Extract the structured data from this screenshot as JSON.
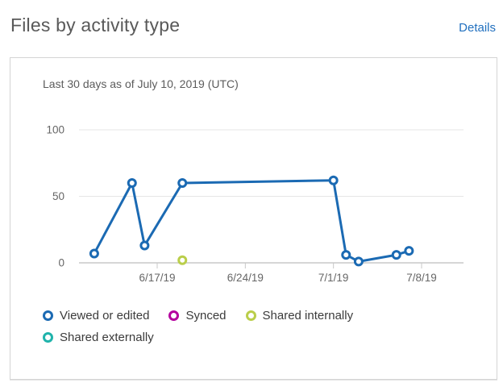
{
  "header": {
    "title": "Files by activity type",
    "details_label": "Details"
  },
  "card": {
    "subtitle": "Last 30 days as of July 10, 2019 (UTC)"
  },
  "colors": {
    "link_blue": "#2170bf",
    "title_gray": "#595959",
    "grid_line": "#e6e6e6",
    "axis_line": "#c8c8c8",
    "axis_text": "#666666",
    "series_viewed": "#1b6ab3",
    "series_synced": "#b4009e",
    "series_shared_internally": "#bace4a",
    "series_shared_externally": "#1fb3ab"
  },
  "chart_data": {
    "type": "line",
    "title": "Files by activity type",
    "subtitle": "Last 30 days as of July 10, 2019 (UTC)",
    "grid": "horizontal",
    "legend_position": "bottom",
    "x_axis": {
      "tick_labels": [
        "6/17/19",
        "6/24/19",
        "7/1/19",
        "7/8/19"
      ],
      "range": [
        "6/11/19",
        "7/10/19"
      ]
    },
    "y_axis": {
      "ticks": [
        0,
        50,
        100
      ],
      "ylim": [
        0,
        100
      ]
    },
    "series": [
      {
        "name": "Viewed or edited",
        "color": "#1b6ab3",
        "points": [
          {
            "date": "6/12/19",
            "value": 7
          },
          {
            "date": "6/15/19",
            "value": 60
          },
          {
            "date": "6/16/19",
            "value": 13
          },
          {
            "date": "6/19/19",
            "value": 60
          },
          {
            "date": "7/1/19",
            "value": 62
          },
          {
            "date": "7/2/19",
            "value": 6
          },
          {
            "date": "7/3/19",
            "value": 1
          },
          {
            "date": "7/6/19",
            "value": 6
          },
          {
            "date": "7/7/19",
            "value": 9
          }
        ]
      },
      {
        "name": "Synced",
        "color": "#b4009e",
        "points": []
      },
      {
        "name": "Shared internally",
        "color": "#bace4a",
        "points": [
          {
            "date": "6/19/19",
            "value": 2
          }
        ]
      },
      {
        "name": "Shared externally",
        "color": "#1fb3ab",
        "points": []
      }
    ]
  }
}
